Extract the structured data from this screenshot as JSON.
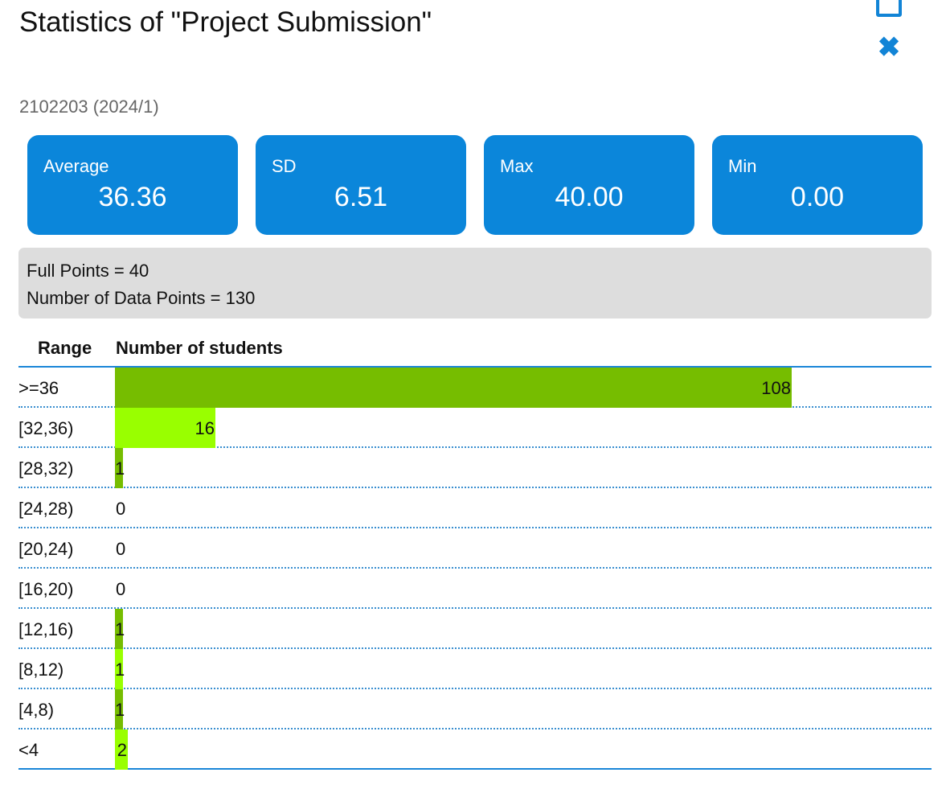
{
  "title": "Statistics of \"Project Submission\"",
  "course": "2102203 (2024/1)",
  "window": {
    "maximize_icon": "maximize-icon",
    "close_icon": "close-icon",
    "close_glyph": "✖"
  },
  "stats": [
    {
      "label": "Average",
      "value": "36.36"
    },
    {
      "label": "SD",
      "value": "6.51"
    },
    {
      "label": "Max",
      "value": "40.00"
    },
    {
      "label": "Min",
      "value": "0.00"
    }
  ],
  "info": {
    "full_points": "Full Points = 40",
    "data_points": "Number of Data Points = 130"
  },
  "table": {
    "header_range": "Range",
    "header_count": "Number of students"
  },
  "colors": {
    "accent": "#0b86da",
    "bar_dark": "#76bd00",
    "bar_light": "#99ff00",
    "info_bg": "#dddddd"
  },
  "chart_data": {
    "type": "bar",
    "orientation": "horizontal",
    "categories": [
      ">=36",
      "[32,36)",
      "[28,32)",
      "[24,28)",
      "[20,24)",
      "[16,20)",
      "[12,16)",
      "[8,12)",
      "[4,8)",
      "<4"
    ],
    "values": [
      108,
      16,
      1,
      0,
      0,
      0,
      1,
      1,
      1,
      2
    ],
    "xlabel": "Number of students",
    "ylabel": "Range",
    "xlim": [
      0,
      108
    ],
    "bar_colors": [
      "dark",
      "light",
      "dark",
      "light",
      "dark",
      "light",
      "dark",
      "light",
      "dark",
      "light"
    ]
  }
}
